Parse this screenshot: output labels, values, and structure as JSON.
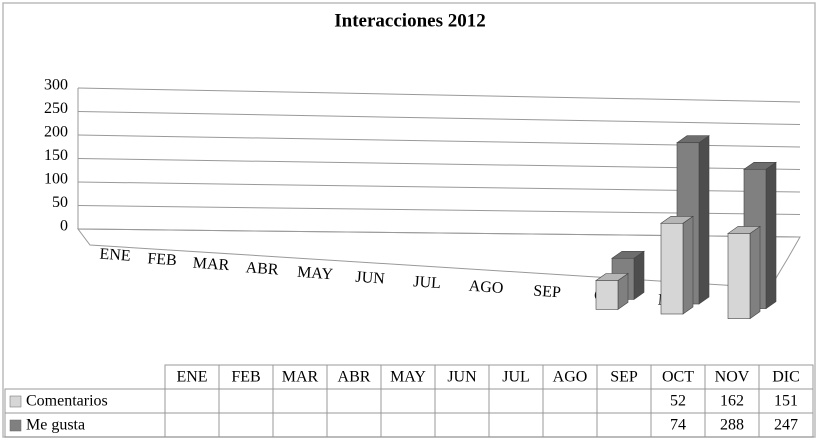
{
  "chart_data": {
    "type": "bar3d",
    "title": "Interacciones 2012",
    "categories": [
      "ENE",
      "FEB",
      "MAR",
      "ABR",
      "MAY",
      "JUN",
      "JUL",
      "AGO",
      "SEP",
      "OCT",
      "NOV",
      "DIC"
    ],
    "series": [
      {
        "name": "Comentarios",
        "color": "#d6d6d6",
        "values": [
          null,
          null,
          null,
          null,
          null,
          null,
          null,
          null,
          null,
          52,
          162,
          151
        ]
      },
      {
        "name": "Me gusta",
        "color": "#808080",
        "values": [
          null,
          null,
          null,
          null,
          null,
          null,
          null,
          null,
          null,
          74,
          288,
          247
        ]
      }
    ],
    "ylim": [
      0,
      300
    ],
    "yticks": [
      0,
      50,
      100,
      150,
      200,
      250,
      300
    ],
    "grid": true,
    "data_table": true
  }
}
